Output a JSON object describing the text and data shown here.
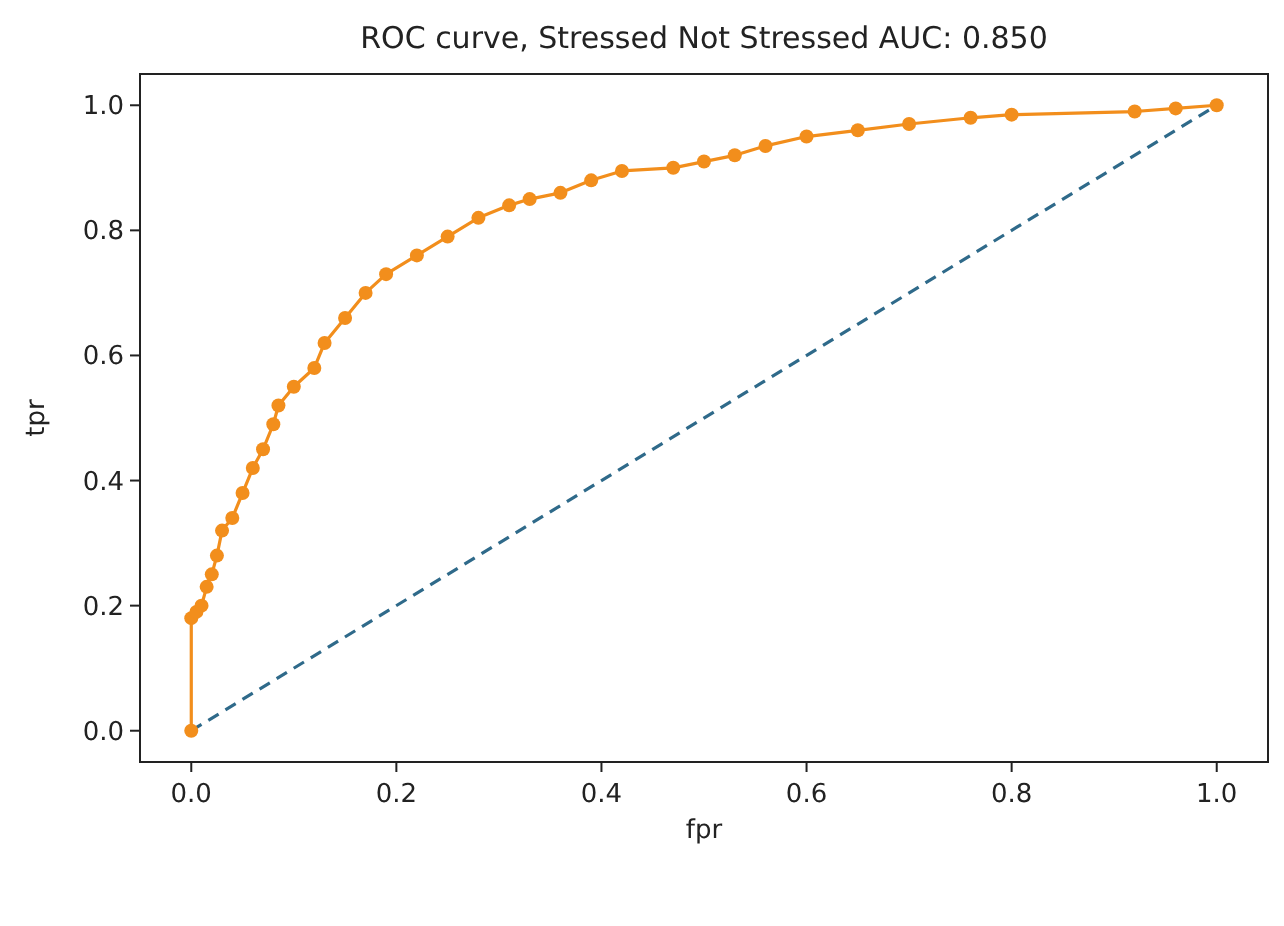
{
  "chart_data": {
    "type": "line",
    "title": "ROC curve, Stressed Not Stressed AUC: 0.850",
    "xlabel": "fpr",
    "ylabel": "tpr",
    "xlim": [
      -0.05,
      1.05
    ],
    "ylim": [
      -0.05,
      1.05
    ],
    "xticks": [
      {
        "value": 0,
        "label": "0.0"
      },
      {
        "value": 0.2,
        "label": "0.2"
      },
      {
        "value": 0.4,
        "label": "0.4"
      },
      {
        "value": 0.6,
        "label": "0.6"
      },
      {
        "value": 0.8,
        "label": "0.8"
      },
      {
        "value": 1,
        "label": "1.0"
      }
    ],
    "yticks": [
      {
        "value": 0,
        "label": "0.0"
      },
      {
        "value": 0.2,
        "label": "0.2"
      },
      {
        "value": 0.4,
        "label": "0.4"
      },
      {
        "value": 0.6,
        "label": "0.6"
      },
      {
        "value": 0.8,
        "label": "0.8"
      },
      {
        "value": 1,
        "label": "1.0"
      }
    ],
    "grid": false,
    "series": [
      {
        "color": "#2f6a8a",
        "line_style": "dashed",
        "marker": "none",
        "x": [
          0,
          1
        ],
        "values": [
          0,
          1
        ]
      },
      {
        "color": "#f28e1c",
        "line_style": "solid",
        "marker": "circle",
        "x": [
          0,
          0,
          0.005,
          0.01,
          0.015,
          0.02,
          0.025,
          0.03,
          0.04,
          0.05,
          0.06,
          0.07,
          0.08,
          0.085,
          0.1,
          0.12,
          0.13,
          0.15,
          0.17,
          0.19,
          0.22,
          0.25,
          0.28,
          0.31,
          0.33,
          0.36,
          0.39,
          0.42,
          0.47,
          0.5,
          0.53,
          0.56,
          0.6,
          0.65,
          0.7,
          0.76,
          0.8,
          0.92,
          0.96,
          1
        ],
        "values": [
          0,
          0.18,
          0.19,
          0.2,
          0.23,
          0.25,
          0.28,
          0.32,
          0.34,
          0.38,
          0.42,
          0.45,
          0.49,
          0.52,
          0.55,
          0.58,
          0.62,
          0.66,
          0.7,
          0.73,
          0.76,
          0.79,
          0.82,
          0.84,
          0.85,
          0.86,
          0.88,
          0.895,
          0.9,
          0.91,
          0.92,
          0.935,
          0.95,
          0.96,
          0.97,
          0.98,
          0.985,
          0.99,
          0.995,
          1
        ]
      }
    ]
  }
}
